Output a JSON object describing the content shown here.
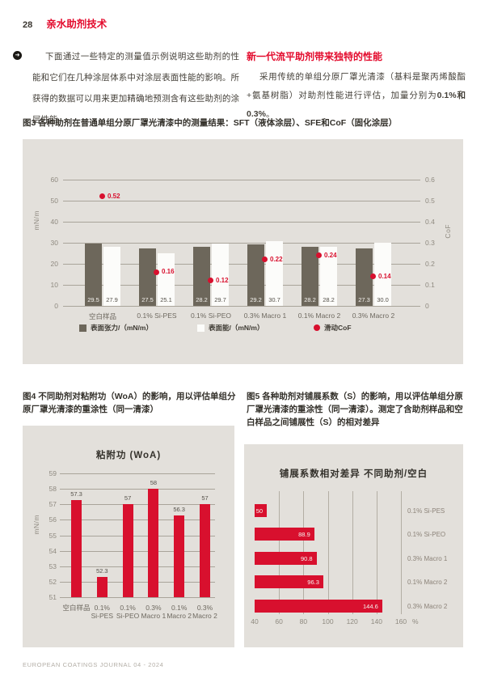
{
  "page": {
    "number": "28",
    "section_title": "亲水助剂技术",
    "footer": "EUROPEAN COATINGS JOURNAL 04 - 2024"
  },
  "icons": {
    "arrow_bullet": "➜"
  },
  "intro": {
    "left_paragraph": "下面通过一些特定的测量值示例说明这些助剂的性能和它们在几种涂层体系中对涂层表面性能的影响。所获得的数据可以用来更加精确地预测含有这些助剂的涂层性能。",
    "right_heading": "新一代流平助剂带来独特的性能",
    "right_paragraph_a": "采用传统的单组分原厂罩光清漆（基料是聚丙烯酸酯+氨基树脂）对助剂性能进行评估，加量分别为",
    "right_paragraph_b": "0.1%和0.3%",
    "right_paragraph_c": "。"
  },
  "figure3": {
    "caption": "图3 各种助剂在普通单组分原厂罩光清漆中的测量结果：SFT（液体涂层）、SFE和CoF（固化涂层）"
  },
  "figure4": {
    "caption": "图4 不同助剂对粘附功（WoA）的影响，用以评估单组分原厂罩光清漆的重涂性（同一清漆）"
  },
  "figure5": {
    "caption": "图5 各种助剂对铺展系数（S）的影响，用以评估单组分原厂罩光清漆的重涂性（同一清漆）。测定了含助剂样品和空白样品之间铺展性（S）的相对差异"
  },
  "colors": {
    "accent_red": "#e30b2d",
    "chart_red": "#d8102e",
    "bar_dark": "#6d675b",
    "bar_white": "#fcfcfa",
    "panel_bg": "#e3e0db",
    "grid_gray": "#a9a49a"
  },
  "chart_data": [
    {
      "type": "bar",
      "title": "各种助剂在普通单组分原厂罩光清漆中的测量结果",
      "categories": [
        "空白样品",
        "0.1% Si-PES",
        "0.1% Si-PEO",
        "0.3% Macro 1",
        "0.1% Macro 2",
        "0.3% Macro 2"
      ],
      "series": [
        {
          "name": "表面张力/（mN/m）",
          "values": [
            29.5,
            27.5,
            28.2,
            29.2,
            28.2,
            27.3
          ],
          "labels": [
            "29.5",
            "27.5",
            "28.2",
            "29.2",
            "28.2",
            "27.3"
          ],
          "style": "bar-dark"
        },
        {
          "name": "表面能/（mN/m）",
          "values": [
            27.9,
            25.1,
            29.7,
            30.7,
            28.2,
            30.0
          ],
          "labels": [
            "27.9",
            "25.1",
            "29.7",
            "30.7",
            "28.2",
            "30.0"
          ],
          "style": "bar-white"
        },
        {
          "name": "滑动CoF",
          "values": [
            0.52,
            0.16,
            0.12,
            0.22,
            0.24,
            0.14
          ],
          "labels": [
            "0.52",
            "0.16",
            "0.12",
            "0.22",
            "0.24",
            "0.14"
          ],
          "style": "point",
          "axis": "right"
        }
      ],
      "left_axis": {
        "label": "mN/m",
        "ticks": [
          0,
          10,
          20,
          30,
          40,
          50,
          60
        ],
        "tick_labels": [
          "0",
          "10",
          "20",
          "30",
          "40",
          "50",
          "60"
        ],
        "range": [
          0,
          60
        ]
      },
      "right_axis": {
        "label": "CoF",
        "ticks": [
          0,
          0.1,
          0.2,
          0.3,
          0.4,
          0.5,
          0.6
        ],
        "tick_labels": [
          "0",
          "0.1",
          "0.2",
          "0.3",
          "0.4",
          "0.5",
          "0.6"
        ],
        "range": [
          0,
          0.6
        ]
      },
      "grid": true,
      "legend_position": "bottom"
    },
    {
      "type": "bar",
      "title": "粘附功 (WoA)",
      "ylabel": "mN/m",
      "categories": [
        [
          "空白样品"
        ],
        [
          "0.1%",
          "Si-PES"
        ],
        [
          "0.1%",
          "Si-PEO"
        ],
        [
          "0.3%",
          "Macro 1"
        ],
        [
          "0.1%",
          "Macro 2"
        ],
        [
          "0.3%",
          "Macro 2"
        ]
      ],
      "values": [
        57.3,
        52.3,
        57,
        58,
        56.3,
        57
      ],
      "labels": [
        "57.3",
        "52.3",
        "57",
        "58",
        "56.3",
        "57"
      ],
      "yticks": [
        51,
        52,
        53,
        54,
        55,
        56,
        57,
        58,
        59
      ],
      "ylim": [
        51,
        59
      ],
      "grid": true
    },
    {
      "type": "bar-horizontal",
      "title": "铺展系数相对差异  不同助剂/空白",
      "categories": [
        "0.1% Si-PES",
        "0.1% Si-PEO",
        "0.3% Macro 1",
        "0.1% Macro 2",
        "0.3% Macro 2"
      ],
      "values": [
        50,
        88.9,
        90.8,
        96.3,
        144.6
      ],
      "labels": [
        "50",
        "88.9",
        "90.8",
        "96.3",
        "144.6"
      ],
      "xticks": [
        40,
        60,
        80,
        100,
        120,
        140,
        160
      ],
      "xtick_labels": [
        "40",
        "60",
        "80",
        "100",
        "120",
        "140",
        "160"
      ],
      "x_unit": "%",
      "xlim": [
        40,
        160
      ],
      "grid": true
    }
  ]
}
